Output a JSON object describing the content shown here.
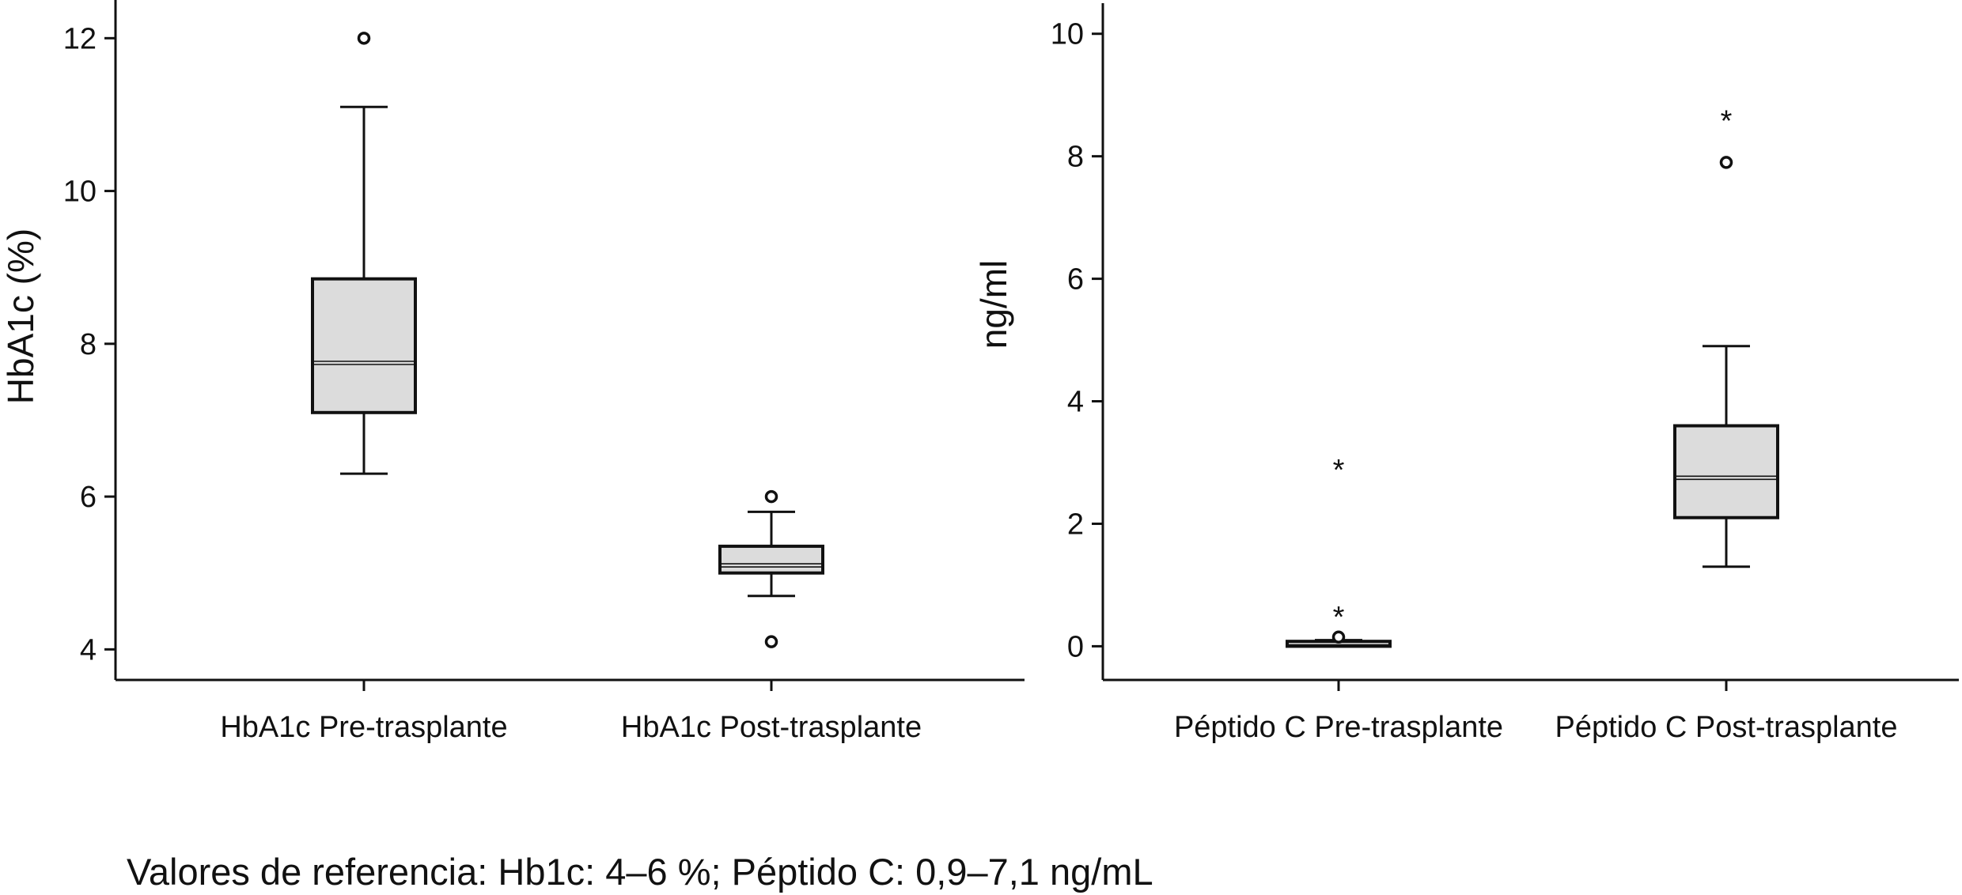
{
  "chart_data": [
    {
      "type": "box",
      "ylabel": "HbA1c (%)",
      "xlabel": "",
      "ylim": [
        3.6,
        12.5
      ],
      "yticks": [
        4,
        6,
        8,
        10,
        12
      ],
      "categories": [
        "HbA1c Pre-trasplante",
        "HbA1c Post-trasplante"
      ],
      "boxes": [
        {
          "category": "HbA1c Pre-trasplante",
          "whisker_low": 6.3,
          "q1": 7.1,
          "median": 7.75,
          "q3": 8.85,
          "whisker_high": 11.1,
          "outliers": [
            12.0
          ],
          "extremes": []
        },
        {
          "category": "HbA1c Post-trasplante",
          "whisker_low": 4.7,
          "q1": 5.0,
          "median": 5.1,
          "q3": 5.35,
          "whisker_high": 5.8,
          "outliers": [
            6.0,
            4.1
          ],
          "extremes": []
        }
      ]
    },
    {
      "type": "box",
      "ylabel": "ng/ml",
      "xlabel": "",
      "ylim": [
        -0.55,
        10.5
      ],
      "yticks": [
        0,
        2,
        4,
        6,
        8,
        10
      ],
      "categories": [
        "Péptido C Pre-trasplante",
        "Péptido C Post-trasplante"
      ],
      "boxes": [
        {
          "category": "Péptido C Pre-trasplante",
          "whisker_low": 0.0,
          "q1": 0.0,
          "median": 0.05,
          "q3": 0.08,
          "whisker_high": 0.1,
          "outliers": [
            0.15
          ],
          "extremes": [
            0.6,
            3.0
          ]
        },
        {
          "category": "Péptido C Post-trasplante",
          "whisker_low": 1.3,
          "q1": 2.1,
          "median": 2.75,
          "q3": 3.6,
          "whisker_high": 4.9,
          "outliers": [
            7.9
          ],
          "extremes": [
            8.7
          ]
        }
      ]
    }
  ],
  "footnote": "Valores  de referencia: Hb1c: 4–6 %; Péptido C: 0,9–7,1 ng/mL"
}
